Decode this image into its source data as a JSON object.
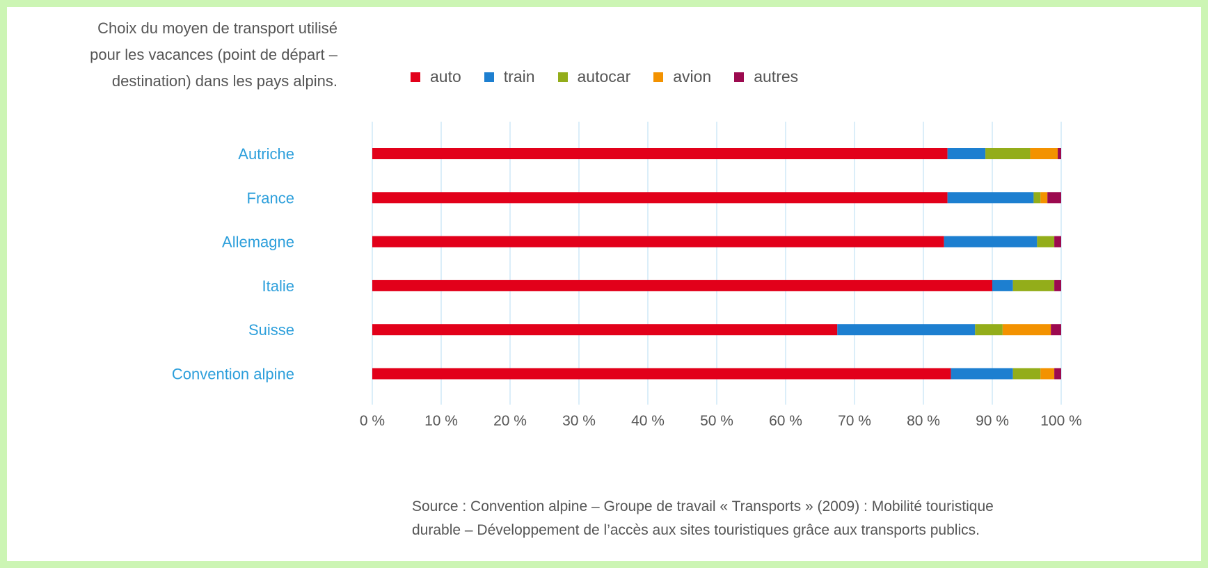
{
  "chart_data": {
    "type": "bar",
    "orientation": "horizontal",
    "stacked": true,
    "title": "Choix du moyen de transport utilisé\npour les vacances (point de départ –\ndestination) dans les pays alpins.",
    "categories": [
      "Autriche",
      "France",
      "Allemagne",
      "Italie",
      "Suisse",
      "Convention alpine"
    ],
    "series": [
      {
        "name": "auto",
        "color": "#e2001a",
        "values": [
          83.5,
          83.5,
          83.0,
          90.0,
          67.5,
          84.0
        ]
      },
      {
        "name": "train",
        "color": "#1d7fd0",
        "values": [
          5.5,
          12.5,
          13.5,
          3.0,
          20.0,
          9.0
        ]
      },
      {
        "name": "autocar",
        "color": "#93ad1a",
        "values": [
          6.5,
          1.0,
          2.5,
          6.0,
          4.0,
          4.0
        ]
      },
      {
        "name": "avion",
        "color": "#f39200",
        "values": [
          4.0,
          1.0,
          0.0,
          0.0,
          7.0,
          2.0
        ]
      },
      {
        "name": "autres",
        "color": "#9c0a4f",
        "values": [
          0.5,
          2.0,
          1.0,
          1.0,
          1.5,
          1.0
        ]
      }
    ],
    "x_ticks": [
      "0 %",
      "10 %",
      "20 %",
      "30 %",
      "40 %",
      "50 %",
      "60 %",
      "70 %",
      "80 %",
      "90 %",
      "100 %"
    ],
    "xlim": [
      0,
      100
    ],
    "grid": "vertical",
    "legend": "top",
    "category_label_color": "#2d9fdb",
    "grid_color": "#cfe8f7"
  },
  "source": "Source : Convention alpine – Groupe de travail « Transports » (2009) : Mobilité touristique\ndurable – Développement de l’accès aux sites touristiques grâce aux transports publics."
}
